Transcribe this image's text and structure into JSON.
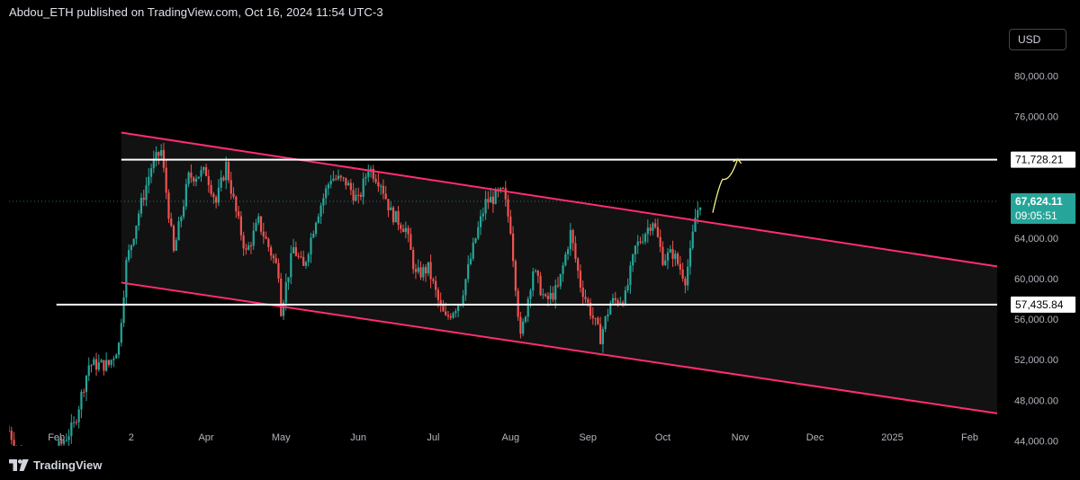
{
  "header": {
    "text": "Abdou_ETH published on TradingView.com, Oct 16, 2024 11:54 UTC-3"
  },
  "toolbar": {
    "currency": "USD"
  },
  "footer": {
    "brand": "TradingView",
    "logo_icon": "tradingview-logo-icon"
  },
  "colors": {
    "background": "#000000",
    "up_candle": "#26a69a",
    "down_candle": "#ef5350",
    "channel": "#ff2e6e",
    "level_line": "#ffffff",
    "projection": "#f5f08a",
    "price_badge": "#26a69a"
  },
  "chart_data": {
    "type": "candlestick",
    "symbol_unit": "USD",
    "ylim": [
      43500,
      85000
    ],
    "y_ticks": [
      44000,
      48000,
      52000,
      56000,
      60000,
      64000,
      68000,
      72000,
      76000,
      80000
    ],
    "y_tick_labels": [
      "44,000.00",
      "48,000.00",
      "52,000.00",
      "56,000.00",
      "60,000.00",
      "64,000.00",
      "68,000.00",
      "72,000.00",
      "76,000.00",
      "80,000.00"
    ],
    "x_ticks": [
      {
        "label": "Feb",
        "date": "2024-02-01"
      },
      {
        "label": "2",
        "date": "2024-03-02"
      },
      {
        "label": "Apr",
        "date": "2024-04-01"
      },
      {
        "label": "May",
        "date": "2024-05-01"
      },
      {
        "label": "Jun",
        "date": "2024-06-01"
      },
      {
        "label": "Jul",
        "date": "2024-07-01"
      },
      {
        "label": "Aug",
        "date": "2024-08-01"
      },
      {
        "label": "Sep",
        "date": "2024-09-01"
      },
      {
        "label": "Oct",
        "date": "2024-10-01"
      },
      {
        "label": "Nov",
        "date": "2024-11-01"
      },
      {
        "label": "Dec",
        "date": "2024-12-01"
      },
      {
        "label": "2025",
        "date": "2025-01-01"
      },
      {
        "label": "Feb",
        "date": "2025-02-01"
      }
    ],
    "xlim": [
      "2024-01-13",
      "2025-02-12"
    ],
    "price_path": [
      [
        "2024-01-13",
        45000
      ],
      [
        "2024-01-22",
        40000
      ],
      [
        "2024-01-25",
        39800
      ],
      [
        "2024-02-01",
        43000
      ],
      [
        "2024-02-08",
        45500
      ],
      [
        "2024-02-14",
        51500
      ],
      [
        "2024-02-22",
        51500
      ],
      [
        "2024-02-26",
        53500
      ],
      [
        "2024-02-29",
        61500
      ],
      [
        "2024-03-05",
        66500
      ],
      [
        "2024-03-10",
        71000
      ],
      [
        "2024-03-14",
        72600
      ],
      [
        "2024-03-19",
        62500
      ],
      [
        "2024-03-25",
        70000
      ],
      [
        "2024-04-01",
        70500
      ],
      [
        "2024-04-05",
        67500
      ],
      [
        "2024-04-09",
        71200
      ],
      [
        "2024-04-13",
        66500
      ],
      [
        "2024-04-17",
        62500
      ],
      [
        "2024-04-22",
        65600
      ],
      [
        "2024-04-30",
        60700
      ],
      [
        "2024-05-01",
        57000
      ],
      [
        "2024-05-06",
        63000
      ],
      [
        "2024-05-10",
        61000
      ],
      [
        "2024-05-15",
        66000
      ],
      [
        "2024-05-21",
        70000
      ],
      [
        "2024-05-27",
        69500
      ],
      [
        "2024-06-01",
        67600
      ],
      [
        "2024-06-05",
        71000
      ],
      [
        "2024-06-10",
        69500
      ],
      [
        "2024-06-14",
        66500
      ],
      [
        "2024-06-20",
        64900
      ],
      [
        "2024-06-24",
        60300
      ],
      [
        "2024-06-29",
        61000
      ],
      [
        "2024-07-04",
        57000
      ],
      [
        "2024-07-06",
        56000
      ],
      [
        "2024-07-12",
        57900
      ],
      [
        "2024-07-18",
        64000
      ],
      [
        "2024-07-22",
        67500
      ],
      [
        "2024-07-29",
        68500
      ],
      [
        "2024-08-01",
        65000
      ],
      [
        "2024-08-05",
        54000
      ],
      [
        "2024-08-10",
        60900
      ],
      [
        "2024-08-15",
        57700
      ],
      [
        "2024-08-20",
        59000
      ],
      [
        "2024-08-25",
        64500
      ],
      [
        "2024-08-29",
        59400
      ],
      [
        "2024-09-06",
        54200
      ],
      [
        "2024-09-10",
        57600
      ],
      [
        "2024-09-16",
        58200
      ],
      [
        "2024-09-20",
        63000
      ],
      [
        "2024-09-27",
        65800
      ],
      [
        "2024-10-01",
        62000
      ],
      [
        "2024-10-05",
        62500
      ],
      [
        "2024-10-10",
        60000
      ],
      [
        "2024-10-12",
        62400
      ],
      [
        "2024-10-14",
        66000
      ],
      [
        "2024-10-16",
        67624
      ]
    ],
    "channel": {
      "upper": [
        [
          "2024-02-27",
          74400
        ],
        [
          "2025-02-12",
          61200
        ]
      ],
      "lower": [
        [
          "2024-02-27",
          59600
        ],
        [
          "2025-02-12",
          46700
        ]
      ],
      "fill": "#121212"
    },
    "levels": [
      {
        "price": 71728.21,
        "label": "71,728.21",
        "start": "2024-02-27"
      },
      {
        "price": 57435.84,
        "label": "57,435.84",
        "start": "2024-02-01"
      }
    ],
    "current_price": {
      "price": 67624.11,
      "label": "67,624.11",
      "countdown": "09:05:51"
    },
    "projection": [
      [
        "2024-10-21",
        66500
      ],
      [
        "2024-10-25",
        69800
      ],
      [
        "2024-10-28",
        69600
      ],
      [
        "2024-10-31",
        71800
      ]
    ]
  }
}
